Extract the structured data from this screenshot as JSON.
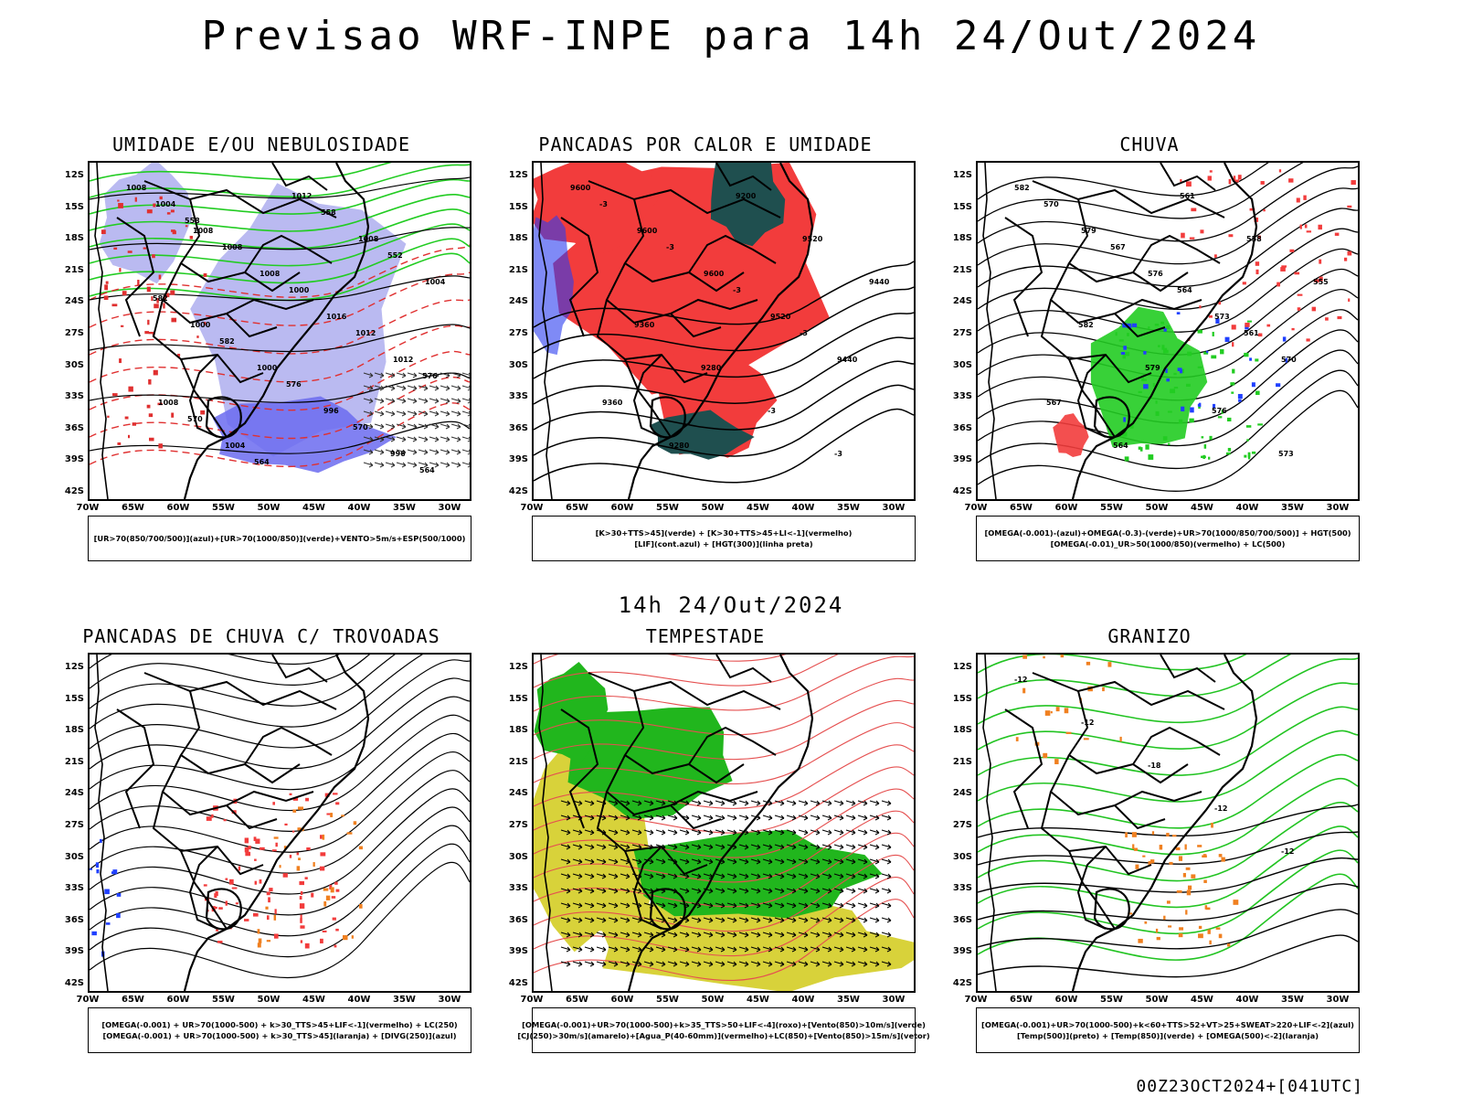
{
  "header": {
    "title": "Previsao WRF-INPE  para 14h 24/Out/2024"
  },
  "mid_label": "14h 24/Out/2024",
  "footer_timestamp": "00Z23OCT2024+[041UTC]",
  "axes": {
    "lat_labels": [
      "12S",
      "15S",
      "18S",
      "21S",
      "24S",
      "27S",
      "30S",
      "33S",
      "36S",
      "39S",
      "42S"
    ],
    "lon_labels": [
      "70W",
      "65W",
      "60W",
      "55W",
      "50W",
      "45W",
      "40W",
      "35W",
      "30W"
    ]
  },
  "colors": {
    "blue_region": "#b3b3f0",
    "red_region": "#f23c3c",
    "dark_teal": "#1f4f4f",
    "green": "#22cc22",
    "yellow": "#d8d23a",
    "orange": "#f08020",
    "blue": "#2040ff"
  },
  "panels": [
    {
      "id": "umidade",
      "title": "UMIDADE E/OU NEBULOSIDADE",
      "legend": [
        "[UR>70(850/700/500)](azul)+[UR>70(1000/850)](verde)+VENTO>5m/s+ESP(500/1000)"
      ],
      "contour_labels": [
        "1008",
        "1008",
        "1008",
        "1016",
        "1012",
        "1008",
        "1004",
        "1012",
        "1008",
        "1004",
        "1000",
        "1000",
        "996",
        "996",
        "1004",
        "1008",
        "1000",
        "1012",
        "576",
        "570",
        "564",
        "558",
        "552",
        "582",
        "582",
        "576",
        "570",
        "564",
        "558"
      ]
    },
    {
      "id": "pancadas_calor",
      "title": "PANCADAS POR CALOR E UMIDADE",
      "legend": [
        "[K>30+TTS>45](verde) + [K>30+TTS>45+LI<-1](vermelho)",
        "[LIF](cont.azul) + [HGT(300)](linha preta)"
      ],
      "contour_labels": [
        "9600",
        "9600",
        "9600",
        "9520",
        "9440",
        "9360",
        "9280",
        "9200",
        "9520",
        "9440",
        "9360",
        "9280",
        "-3",
        "-3",
        "-3",
        "-3",
        "-3",
        "-3"
      ]
    },
    {
      "id": "chuva",
      "title": "CHUVA",
      "legend": [
        "[OMEGA(-0.001)-(azul)+OMEGA(-0.3)-(verde)+UR>70(1000/850/700/500)] + HGT(500)",
        "[OMEGA(-0.01)_UR>50(1000/850)(vermelho) + LC(500)"
      ],
      "contour_labels": [
        "582",
        "579",
        "576",
        "573",
        "570",
        "567",
        "564",
        "561",
        "558",
        "555",
        "582",
        "579",
        "576",
        "573",
        "570",
        "567",
        "564",
        "561"
      ]
    },
    {
      "id": "pancadas_trovoadas",
      "title": "PANCADAS DE CHUVA C/ TROVOADAS",
      "legend": [
        "[OMEGA(-0.001) + UR>70(1000-500) + k>30_TTS>45+LIF<-1](vermelho) + LC(250)",
        "[OMEGA(-0.001) + UR>70(1000-500) + k>30_TTS>45](laranja) + [DIVG(250)](azul)"
      ],
      "contour_labels": []
    },
    {
      "id": "tempestade",
      "title": "TEMPESTADE",
      "legend": [
        "[OMEGA(-0.001)+UR>70(1000-500)+k>35_TTS>50+LIF<-4](roxo)+[Vento(850)>10m/s](verde)",
        "[CJ(250)>30m/s](amarelo)+[Agua_P(40-60mm)](vermelho)+LC(850)+[Vento(850)>15m/s](vetor)"
      ],
      "contour_labels": []
    },
    {
      "id": "granizo",
      "title": "GRANIZO",
      "legend": [
        "[OMEGA(-0.001)+UR>70(1000-500)+k<60+TTS>52+VT>25+SWEAT>220+LIF<-2](azul)",
        "[Temp(500)](preto) + [Temp(850)](verde) + [OMEGA(500)<-2](laranja)"
      ],
      "contour_labels": [
        "-12",
        "-12",
        "-18",
        "-12",
        "-12"
      ]
    }
  ]
}
